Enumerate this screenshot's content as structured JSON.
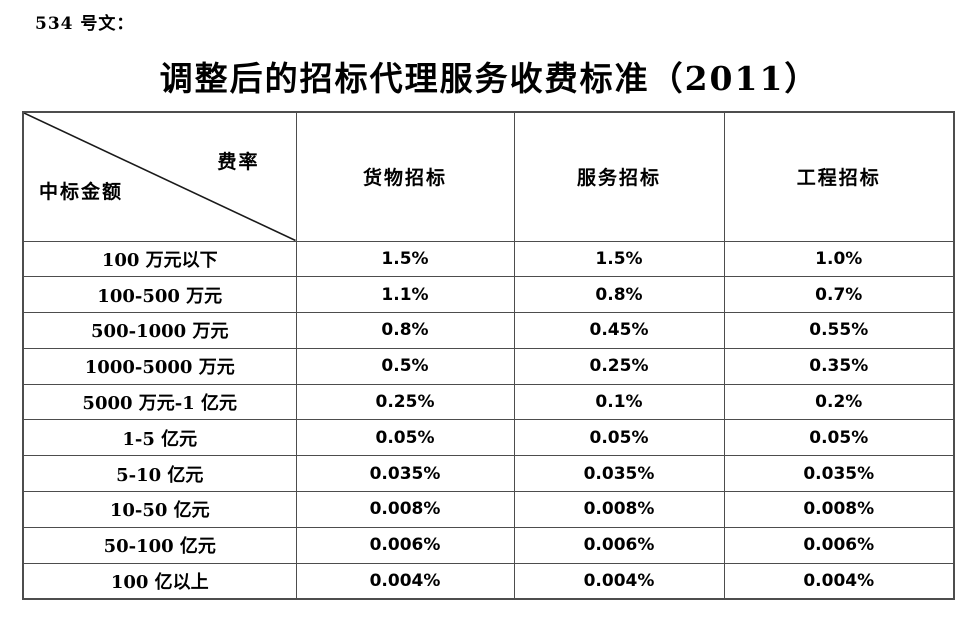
{
  "page": {
    "doc_number": "534 号文：",
    "title": "调整后的招标代理服务收费标准（2011）"
  },
  "table": {
    "corner": {
      "top_right_label": "费率",
      "bottom_left_label": "中标金额"
    },
    "columns": [
      "货物招标",
      "服务招标",
      "工程招标"
    ],
    "rows": [
      {
        "label": "100 万元以下",
        "values": [
          "1.5%",
          "1.5%",
          "1.0%"
        ]
      },
      {
        "label": "100-500 万元",
        "values": [
          "1.1%",
          "0.8%",
          "0.7%"
        ]
      },
      {
        "label": "500-1000 万元",
        "values": [
          "0.8%",
          "0.45%",
          "0.55%"
        ]
      },
      {
        "label": "1000-5000 万元",
        "values": [
          "0.5%",
          "0.25%",
          "0.35%"
        ]
      },
      {
        "label": "5000 万元-1 亿元",
        "values": [
          "0.25%",
          "0.1%",
          "0.2%"
        ]
      },
      {
        "label": "1-5 亿元",
        "values": [
          "0.05%",
          "0.05%",
          "0.05%"
        ]
      },
      {
        "label": "5-10 亿元",
        "values": [
          "0.035%",
          "0.035%",
          "0.035%"
        ]
      },
      {
        "label": "10-50 亿元",
        "values": [
          "0.008%",
          "0.008%",
          "0.008%"
        ]
      },
      {
        "label": "50-100 亿元",
        "values": [
          "0.006%",
          "0.006%",
          "0.006%"
        ]
      },
      {
        "label": "100 亿以上",
        "values": [
          "0.004%",
          "0.004%",
          "0.004%"
        ]
      }
    ]
  },
  "colors": {
    "border": "#4d4d4d",
    "diagonal": "#1a1a1a",
    "text": "#000000",
    "background": "#ffffff"
  }
}
